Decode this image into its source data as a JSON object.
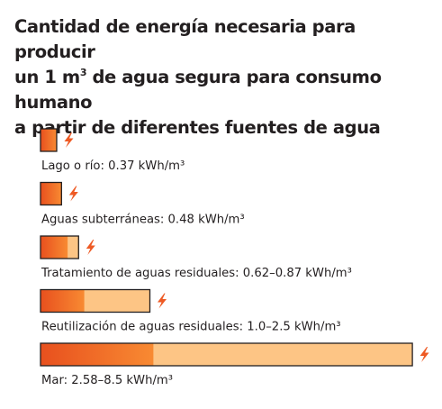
{
  "title": {
    "line1": "Cantidad de energía necesaria para producir",
    "line2_pre": "un 1 m",
    "line2_sup": "3",
    "line2_post": " de agua segura para consumo humano",
    "line3": "a partir de diferentes fuentes de agua"
  },
  "chart_data": {
    "type": "bar",
    "orientation": "horizontal",
    "unit": "kWh/m³",
    "title": "Cantidad de energía necesaria para producir un 1 m³ de agua segura para consumo humano a partir de diferentes fuentes de agua",
    "categories": [
      "Lago o río",
      "Aguas subterráneas",
      "Tratamiento de aguas residuales",
      "Reutilización de aguas residuales",
      "Mar"
    ],
    "min_values": [
      0.37,
      0.48,
      0.62,
      1.0,
      2.58
    ],
    "max_values": [
      0.37,
      0.48,
      0.87,
      2.5,
      8.5
    ],
    "labels": [
      "Lago o río: 0.37 kWh/m³",
      "Aguas subterráneas: 0.48 kWh/m³",
      "Tratamiento de aguas residuales: 0.62–0.87 kWh/m³",
      "Reutilización de aguas residuales: 1.0–2.5 kWh/m³",
      "Mar: 2.58–8.5 kWh/m³"
    ],
    "colors": {
      "gradient_start": "#e8501e",
      "gradient_mid": "#f88a32",
      "range_fill": "#fdc585",
      "outline": "#231f20",
      "bolt": "#ee5a24"
    },
    "icon": "lightning-bolt-icon"
  }
}
